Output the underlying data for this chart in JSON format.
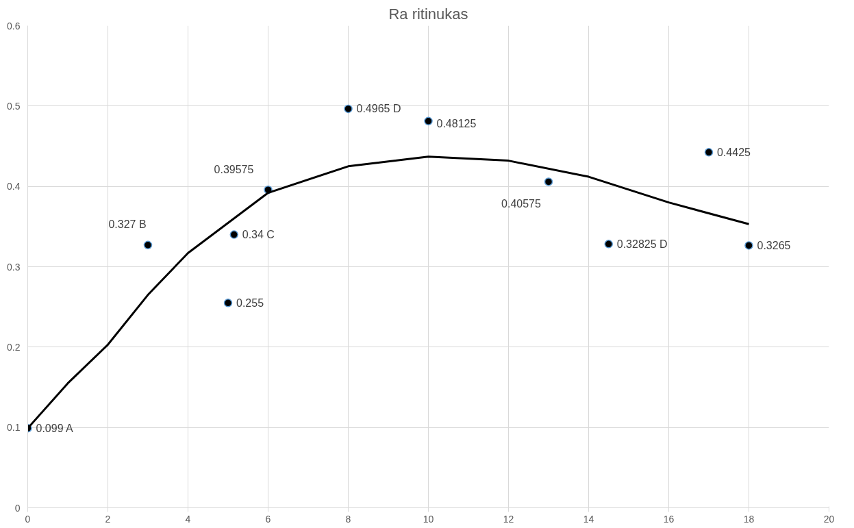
{
  "chart_data": {
    "type": "scatter",
    "title": "Ra ritinukas",
    "xlim": [
      0,
      20
    ],
    "ylim": [
      0,
      0.6
    ],
    "xticks": [
      0,
      2,
      4,
      6,
      8,
      10,
      12,
      14,
      16,
      18,
      20
    ],
    "yticks": [
      0,
      0.1,
      0.2,
      0.3,
      0.4,
      0.5,
      0.6
    ],
    "grid": true,
    "series": [
      {
        "marker": "circle",
        "color": "#000000",
        "x": [
          0,
          3,
          5,
          5.15,
          6,
          8,
          10,
          13,
          14.5,
          17,
          18
        ],
        "values": [
          0.099,
          0.327,
          0.255,
          0.34,
          0.39575,
          0.4965,
          0.48125,
          0.40575,
          0.32825,
          0.4425,
          0.3265
        ],
        "value_labels": [
          "0.099 A",
          "0.327 B",
          "0.255",
          "0.34 C",
          "0.39575",
          "0.4965 D",
          "0.48125",
          "0.40575",
          "0.32825 D",
          "0.4425",
          "0.3265"
        ]
      },
      {
        "type": "line",
        "marker": "none",
        "color": "#000000",
        "x": [
          0,
          1,
          2,
          3,
          4,
          6,
          8,
          10,
          12,
          14,
          16,
          18
        ],
        "values": [
          0.099,
          0.155,
          0.203,
          0.265,
          0.317,
          0.392,
          0.425,
          0.437,
          0.432,
          0.412,
          0.38,
          0.353
        ]
      }
    ]
  }
}
